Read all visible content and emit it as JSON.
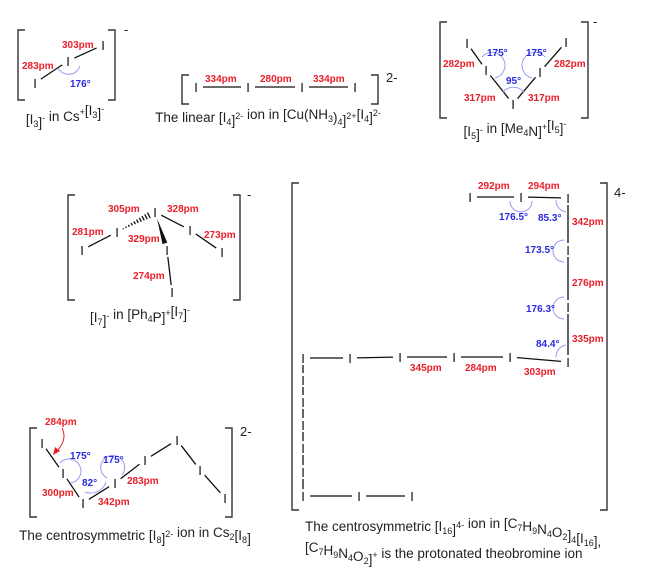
{
  "atom_symbol": "I",
  "colors": {
    "bond_length": "#e8202a",
    "bond_angle": "#2a2ae0",
    "angle_arc": "#9a9af5"
  },
  "i3": {
    "charge": "-",
    "lengths": [
      "303pm",
      "283pm"
    ],
    "angles": [
      "176°"
    ],
    "caption": [
      {
        "t": "[I"
      },
      {
        "sub": "3"
      },
      {
        "t": "]"
      },
      {
        "sup": "-"
      },
      {
        "t": " in Cs"
      },
      {
        "sup": "+"
      },
      {
        "t": "[I"
      },
      {
        "sub": "3"
      },
      {
        "t": "]"
      },
      {
        "sup": "-"
      }
    ]
  },
  "i4": {
    "charge": "2-",
    "lengths": [
      "334pm",
      "280pm",
      "334pm"
    ],
    "caption": [
      {
        "t": "The linear [I"
      },
      {
        "sub": "4"
      },
      {
        "t": "]"
      },
      {
        "sup": "2-"
      },
      {
        "t": " ion in [Cu(NH"
      },
      {
        "sub": "3"
      },
      {
        "t": ")"
      },
      {
        "sub": "4"
      },
      {
        "t": "]"
      },
      {
        "sup": "2+"
      },
      {
        "t": "[I"
      },
      {
        "sub": "4"
      },
      {
        "t": "]"
      },
      {
        "sup": "2-"
      }
    ]
  },
  "i5": {
    "charge": "-",
    "lengths": [
      "282pm",
      "282pm",
      "317pm",
      "317pm"
    ],
    "angles": [
      "175°",
      "175°",
      "95°"
    ],
    "caption": [
      {
        "t": "[I"
      },
      {
        "sub": "5"
      },
      {
        "t": "]"
      },
      {
        "sup": "-"
      },
      {
        "t": " in [Me"
      },
      {
        "sub": "4"
      },
      {
        "t": "N]"
      },
      {
        "sup": "+"
      },
      {
        "t": "[I"
      },
      {
        "sub": "5"
      },
      {
        "t": "]"
      },
      {
        "sup": "-"
      }
    ]
  },
  "i7": {
    "charge": "-",
    "lengths": [
      "305pm",
      "328pm",
      "281pm",
      "329pm",
      "273pm",
      "274pm"
    ],
    "caption": [
      {
        "t": "[I"
      },
      {
        "sub": "7"
      },
      {
        "t": "]"
      },
      {
        "sup": "-"
      },
      {
        "t": " in [Ph"
      },
      {
        "sub": "4"
      },
      {
        "t": "P]"
      },
      {
        "sup": "+"
      },
      {
        "t": "[I"
      },
      {
        "sub": "7"
      },
      {
        "t": "]"
      },
      {
        "sup": "-"
      }
    ]
  },
  "i8": {
    "charge": "2-",
    "lengths": [
      "284pm",
      "300pm",
      "342pm",
      "283pm"
    ],
    "angles": [
      "175°",
      "175°",
      "82°"
    ],
    "caption": [
      {
        "t": "The centrosymmetric [I"
      },
      {
        "sub": "8"
      },
      {
        "t": "]"
      },
      {
        "sup": "2-"
      },
      {
        "t": " ion in Cs"
      },
      {
        "sub": "2"
      },
      {
        "t": "[I"
      },
      {
        "sub": "8"
      },
      {
        "t": "]"
      }
    ]
  },
  "i16": {
    "charge": "4-",
    "lengths": [
      "292pm",
      "294pm",
      "342pm",
      "276pm",
      "335pm",
      "345pm",
      "284pm",
      "303pm"
    ],
    "angles": [
      "176.5°",
      "85.3°",
      "173.5°",
      "176.3°",
      "84.4°"
    ],
    "caption": [
      {
        "t": "The centrosymmetric [I"
      },
      {
        "sub": "16"
      },
      {
        "t": "]"
      },
      {
        "sup": "4-"
      },
      {
        "t": " ion in [C"
      },
      {
        "sub": "7"
      },
      {
        "t": "H"
      },
      {
        "sub": "9"
      },
      {
        "t": "N"
      },
      {
        "sub": "4"
      },
      {
        "t": "O"
      },
      {
        "sub": "2"
      },
      {
        "t": "]"
      },
      {
        "sub": "4"
      },
      {
        "t": "[I"
      },
      {
        "sub": "16"
      },
      {
        "t": "],"
      }
    ],
    "caption2": [
      {
        "t": "[C"
      },
      {
        "sub": "7"
      },
      {
        "t": "H"
      },
      {
        "sub": "9"
      },
      {
        "t": "N"
      },
      {
        "sub": "4"
      },
      {
        "t": "O"
      },
      {
        "sub": "2"
      },
      {
        "t": "]"
      },
      {
        "sup": "+"
      },
      {
        "t": " is the protonated theobromine ion"
      }
    ]
  }
}
